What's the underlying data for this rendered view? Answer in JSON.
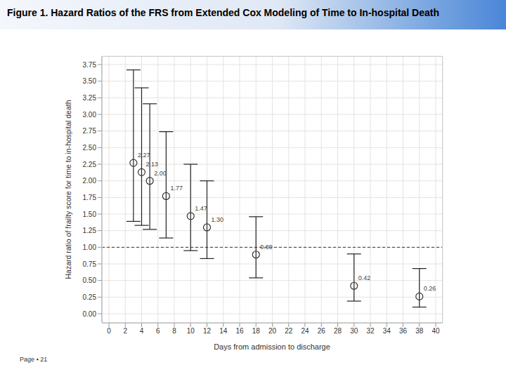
{
  "chart_data": {
    "type": "scatter",
    "title": "Figure 1. Hazard Ratios of the FRS from Extended Cox Modeling of Time to In-hospital Death",
    "x_label": "Days from admission to discharge",
    "y_label": "Hazard ratio of frailty score for time to in-hospital death",
    "x": [
      3,
      4,
      5,
      7,
      10,
      12,
      18,
      30,
      38
    ],
    "values": [
      2.27,
      2.13,
      2.0,
      1.77,
      1.47,
      1.3,
      0.89,
      0.42,
      0.26
    ],
    "value_labels": [
      "2.27",
      "2.13",
      "2.00",
      "1.77",
      "1.47",
      "1.30",
      "0.89",
      "0.42",
      "0.26"
    ],
    "ci_lower": [
      1.39,
      1.33,
      1.27,
      1.14,
      0.95,
      0.83,
      0.54,
      0.19,
      0.1
    ],
    "ci_upper": [
      3.67,
      3.4,
      3.16,
      2.74,
      2.25,
      2.0,
      1.46,
      0.9,
      0.68
    ],
    "reference_line": 1.0,
    "xlim": [
      0,
      40
    ],
    "xticks": [
      0,
      2,
      4,
      6,
      8,
      10,
      12,
      14,
      16,
      18,
      20,
      22,
      24,
      26,
      28,
      30,
      32,
      34,
      36,
      38,
      40
    ],
    "ylim": [
      0,
      3.75
    ],
    "yticks": [
      {
        "value": 0,
        "label": "0.00"
      },
      {
        "value": 0.25,
        "label": "0.25"
      },
      {
        "value": 0.5,
        "label": "0.50"
      },
      {
        "value": 0.75,
        "label": "0.75"
      },
      {
        "value": 1,
        "label": "1.00"
      },
      {
        "value": 1.25,
        "label": "1.25"
      },
      {
        "value": 1.5,
        "label": "1.50"
      },
      {
        "value": 1.75,
        "label": "1.75"
      },
      {
        "value": 2,
        "label": "2.00"
      },
      {
        "value": 2.25,
        "label": "2.25"
      },
      {
        "value": 2.5,
        "label": "2.50"
      },
      {
        "value": 2.75,
        "label": "2.75"
      },
      {
        "value": 3,
        "label": "3.00"
      },
      {
        "value": 3.25,
        "label": "3.25"
      },
      {
        "value": 3.5,
        "label": "3.50"
      },
      {
        "value": 3.75,
        "label": "3.75"
      }
    ],
    "grid": true,
    "data_labels": true,
    "marker": "open_circle",
    "color": "#333333"
  },
  "footer": "Page ▪ 21"
}
